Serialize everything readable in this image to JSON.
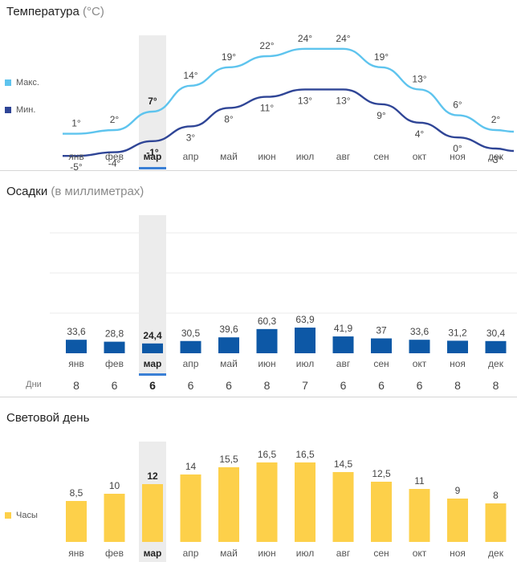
{
  "months": [
    "янв",
    "фев",
    "мар",
    "апр",
    "май",
    "июн",
    "июл",
    "авг",
    "сен",
    "окт",
    "ноя",
    "дек"
  ],
  "selected_month_index": 2,
  "colors": {
    "max_line": "#5ec4ee",
    "min_line": "#2f4596",
    "precip_bar": "#0d58a6",
    "daylight_bar": "#fdd04a",
    "highlight": "#ececec",
    "selected_underline": "#3a7fd5"
  },
  "chart_data": [
    {
      "type": "line",
      "title": "Температура",
      "subtitle": "(°C)",
      "categories": [
        "янв",
        "фев",
        "мар",
        "апр",
        "май",
        "июн",
        "июл",
        "авг",
        "сен",
        "окт",
        "ноя",
        "дек"
      ],
      "series": [
        {
          "name": "Макс.",
          "values": [
            1,
            2,
            7,
            14,
            19,
            22,
            24,
            24,
            19,
            13,
            6,
            2
          ],
          "labels": [
            "1°",
            "2°",
            "7°",
            "14°",
            "19°",
            "22°",
            "24°",
            "24°",
            "19°",
            "13°",
            "6°",
            "2°"
          ]
        },
        {
          "name": "Мин.",
          "values": [
            -5,
            -4,
            -1,
            3,
            8,
            11,
            13,
            13,
            9,
            4,
            0,
            -3
          ],
          "labels": [
            "-5°",
            "-4°",
            "-1°",
            "3°",
            "8°",
            "11°",
            "13°",
            "13°",
            "9°",
            "4°",
            "0°",
            "-3°"
          ]
        }
      ]
    },
    {
      "type": "bar",
      "title": "Осадки",
      "subtitle": "(в миллиметрах)",
      "categories": [
        "янв",
        "фев",
        "мар",
        "апр",
        "май",
        "июн",
        "июл",
        "авг",
        "сен",
        "окт",
        "ноя",
        "дек"
      ],
      "values": [
        33.6,
        28.8,
        24.4,
        30.5,
        39.6,
        60.3,
        63.9,
        41.9,
        37,
        33.6,
        31.2,
        30.4
      ],
      "labels": [
        "33,6",
        "28,8",
        "24,4",
        "30,5",
        "39,6",
        "60,3",
        "63,9",
        "41,9",
        "37",
        "33,6",
        "31,2",
        "30,4"
      ],
      "days_label": "Дни",
      "days": [
        "8",
        "6",
        "6",
        "6",
        "6",
        "8",
        "7",
        "6",
        "6",
        "6",
        "8",
        "8"
      ]
    },
    {
      "type": "bar",
      "title": "Световой день",
      "subtitle": "",
      "legend": "Часы",
      "categories": [
        "янв",
        "фев",
        "мар",
        "апр",
        "май",
        "июн",
        "июл",
        "авг",
        "сен",
        "окт",
        "ноя",
        "дек"
      ],
      "values": [
        8.5,
        10,
        12,
        14,
        15.5,
        16.5,
        16.5,
        14.5,
        12.5,
        11,
        9,
        8
      ],
      "labels": [
        "8,5",
        "10",
        "12",
        "14",
        "15,5",
        "16,5",
        "16,5",
        "14,5",
        "12,5",
        "11",
        "9",
        "8"
      ]
    }
  ]
}
